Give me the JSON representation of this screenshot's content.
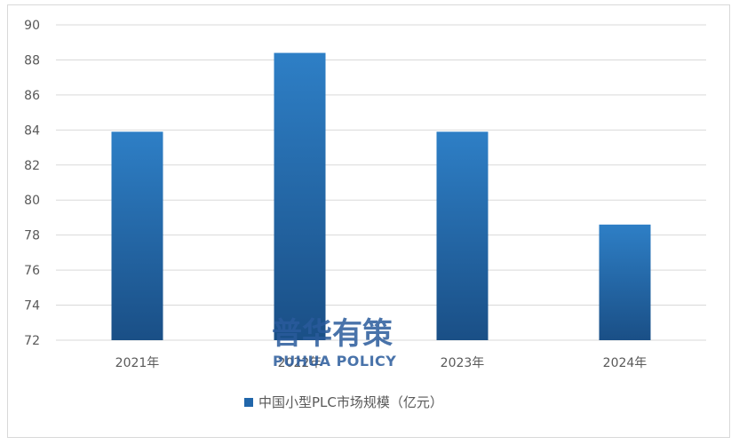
{
  "chart_data": {
    "type": "bar",
    "categories": [
      "2021年",
      "2022年",
      "2023年",
      "2024年"
    ],
    "series": [
      {
        "name": "中国小型PLC市场规模（亿元）",
        "values": [
          83.9,
          88.4,
          83.9,
          78.6
        ]
      }
    ],
    "ylim": [
      72,
      90
    ],
    "yticks": [
      72,
      74,
      76,
      78,
      80,
      82,
      84,
      86,
      88,
      90
    ],
    "grid": true,
    "legend": "bottom",
    "colors": {
      "bar_top": "#2e7fc6",
      "bar_bottom": "#1a4f86",
      "legend_swatch": "#2166aa",
      "grid": "#d9d9d9"
    }
  },
  "watermark": {
    "cn": "普华有策",
    "en": "PUHUA POLICY"
  }
}
